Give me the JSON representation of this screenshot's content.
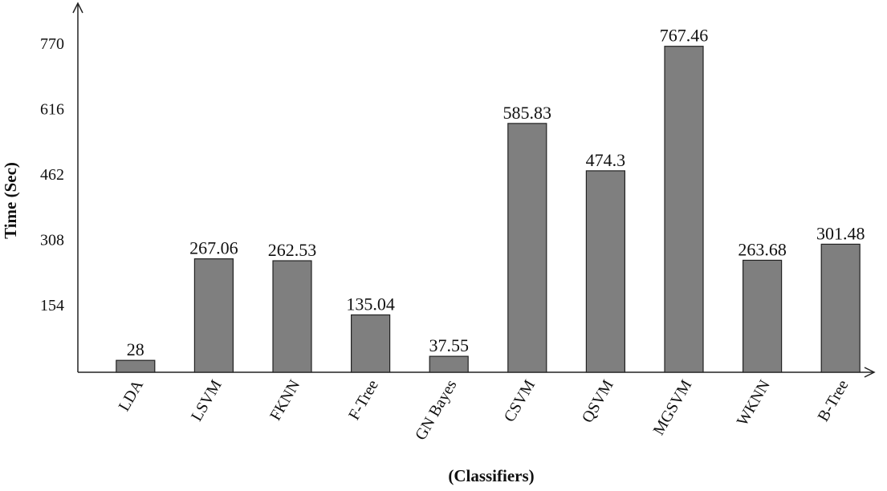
{
  "chart_data": {
    "type": "bar",
    "x_label": "(Classifiers)",
    "y_label": "Time (Sec)",
    "categories": [
      "LDA",
      "LSVM",
      "FKNN",
      "F-Tree",
      "GN Bayes",
      "CSVM",
      "QSVM",
      "MGSVM",
      "WKNN",
      "B-Tree"
    ],
    "values": [
      28,
      267.06,
      262.53,
      135.04,
      37.55,
      585.83,
      474.3,
      767.46,
      263.68,
      301.48
    ],
    "color": "#7f7f7f",
    "ylim": [
      0,
      867
    ],
    "yticks": [
      154,
      308,
      462,
      616,
      770
    ],
    "grid": false
  }
}
